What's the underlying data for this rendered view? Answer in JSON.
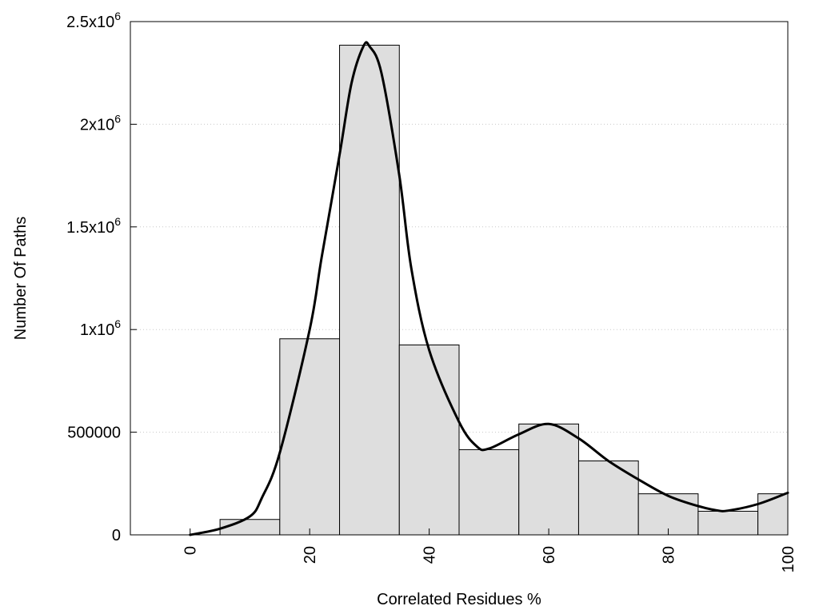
{
  "chart_data": {
    "type": "bar",
    "xlabel": "Correlated Residues %",
    "ylabel": "Number Of Paths",
    "xlim": [
      -10,
      100
    ],
    "ylim": [
      0,
      2500000
    ],
    "grid": "horizontal dotted",
    "x_ticks": [
      {
        "value": 0,
        "label": "0"
      },
      {
        "value": 20,
        "label": "20"
      },
      {
        "value": 40,
        "label": "40"
      },
      {
        "value": 60,
        "label": "60"
      },
      {
        "value": 80,
        "label": "80"
      },
      {
        "value": 100,
        "label": "100"
      }
    ],
    "y_ticks": [
      {
        "value": 0,
        "mantissa": "0",
        "exp": ""
      },
      {
        "value": 500000,
        "mantissa": "500000",
        "exp": ""
      },
      {
        "value": 1000000,
        "mantissa": "1x10",
        "exp": "6"
      },
      {
        "value": 1500000,
        "mantissa": "1.5x10",
        "exp": "6"
      },
      {
        "value": 2000000,
        "mantissa": "2x10",
        "exp": "6"
      },
      {
        "value": 2500000,
        "mantissa": "2.5x10",
        "exp": "6"
      }
    ],
    "bars": [
      {
        "x0": 5,
        "x1": 15,
        "value": 75000
      },
      {
        "x0": 15,
        "x1": 25,
        "value": 955000
      },
      {
        "x0": 25,
        "x1": 35,
        "value": 2385000
      },
      {
        "x0": 35,
        "x1": 45,
        "value": 925000
      },
      {
        "x0": 45,
        "x1": 55,
        "value": 415000
      },
      {
        "x0": 55,
        "x1": 65,
        "value": 540000
      },
      {
        "x0": 65,
        "x1": 75,
        "value": 360000
      },
      {
        "x0": 75,
        "x1": 85,
        "value": 200000
      },
      {
        "x0": 85,
        "x1": 95,
        "value": 115000
      },
      {
        "x0": 95,
        "x1": 100,
        "value": 200000
      }
    ],
    "curve": {
      "x": [
        0,
        5,
        10,
        12,
        15,
        20,
        22,
        25,
        27,
        29,
        30,
        32,
        35,
        37,
        40,
        45,
        48,
        50,
        55,
        60,
        65,
        70,
        75,
        80,
        85,
        88,
        90,
        95,
        100
      ],
      "y": [
        0,
        30000,
        90000,
        180000,
        400000,
        1000000,
        1350000,
        1850000,
        2200000,
        2380000,
        2380000,
        2250000,
        1750000,
        1300000,
        900000,
        550000,
        430000,
        420000,
        490000,
        540000,
        470000,
        360000,
        270000,
        190000,
        140000,
        120000,
        118000,
        150000,
        205000
      ]
    },
    "bar_fill": "#dedede",
    "bar_stroke": "#000000",
    "curve_color": "#000000",
    "grid_color": "#c8c8c8"
  }
}
